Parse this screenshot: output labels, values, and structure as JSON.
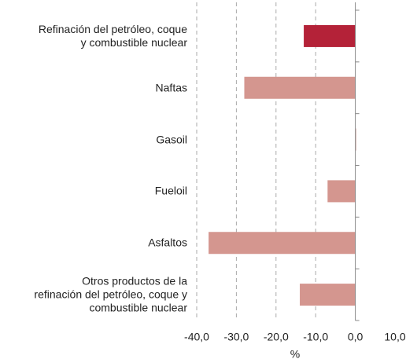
{
  "chart_data": {
    "type": "hbar",
    "categories": [
      "Refinación del petróleo, coque\ny combustible nuclear",
      "Naftas",
      "Gasoil",
      "Fueloil",
      "Asfaltos",
      "Otros productos de la\nrefinación del petróleo, coque y\ncombustible nuclear"
    ],
    "values": [
      -13,
      -28,
      0.2,
      -7,
      -37,
      -14
    ],
    "colors": [
      "#b42238",
      "#d4968f",
      "#d4968f",
      "#d4968f",
      "#d4968f",
      "#d4968f"
    ],
    "xlim": [
      -40,
      10
    ],
    "xticks": [
      {
        "value": -40,
        "label": "-40,0"
      },
      {
        "value": -30,
        "label": "-30,0"
      },
      {
        "value": -20,
        "label": "-20,0"
      },
      {
        "value": -10,
        "label": "-10,0"
      },
      {
        "value": 0,
        "label": "0,0"
      },
      {
        "value": 10,
        "label": "10,0"
      }
    ],
    "xlabel": "%",
    "grid": true
  }
}
